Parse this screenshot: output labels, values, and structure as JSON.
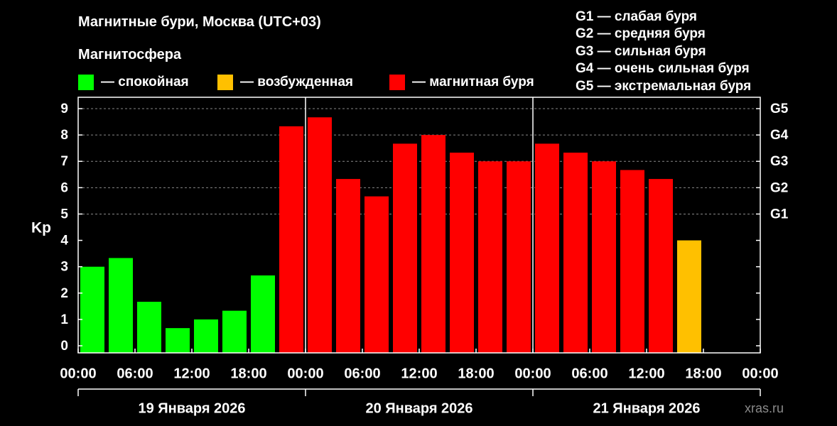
{
  "header": {
    "title": "Магнитные бури, Москва (UTC+03)",
    "subtitle": "Магнитосфера"
  },
  "legend": [
    {
      "color": "#00ff00",
      "label": "— спокойная"
    },
    {
      "color": "#ffc000",
      "label": "— возбужденная"
    },
    {
      "color": "#ff0000",
      "label": "— магнитная буря"
    }
  ],
  "g_legend": [
    "G1 — слабая буря",
    "G2 — средняя буря",
    "G3 — сильная буря",
    "G4 — очень сильная буря",
    "G5 — экстремальная буря"
  ],
  "watermark": "xras.ru",
  "chart_data": {
    "type": "bar",
    "ylabel": "Kp",
    "ylim": [
      0,
      9
    ],
    "y_ticks": [
      0,
      1,
      2,
      3,
      4,
      5,
      6,
      7,
      8,
      9
    ],
    "right_ticks": [
      {
        "value": 5,
        "label": "G1"
      },
      {
        "value": 6,
        "label": "G2"
      },
      {
        "value": 7,
        "label": "G3"
      },
      {
        "value": 8,
        "label": "G4"
      },
      {
        "value": 9,
        "label": "G5"
      }
    ],
    "grid": "horizontal dashed at 5–9",
    "x_tick_labels": [
      "00:00",
      "06:00",
      "12:00",
      "18:00",
      "00:00",
      "06:00",
      "12:00",
      "18:00",
      "00:00",
      "06:00",
      "12:00",
      "18:00",
      "00:00"
    ],
    "days": [
      "19 Января 2026",
      "20 Января 2026",
      "21 Января 2026"
    ],
    "bar_hours": 3,
    "values": [
      3.0,
      3.33,
      1.67,
      0.67,
      1.0,
      1.33,
      2.67,
      8.33,
      8.67,
      6.33,
      5.67,
      7.67,
      8.0,
      7.33,
      7.0,
      7.0,
      7.67,
      7.33,
      7.0,
      6.67,
      6.33,
      4.0
    ],
    "colors": {
      "quiet": "#00ff00",
      "active": "#ffc000",
      "storm": "#ff0000"
    }
  }
}
